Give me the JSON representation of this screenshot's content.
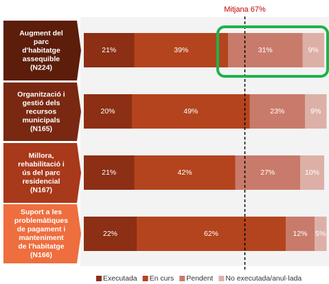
{
  "chart_data": {
    "type": "stacked-barh",
    "categories": [
      [
        "Augment del",
        "parc",
        "d'habitatge",
        "assequible",
        "(N224)"
      ],
      [
        "Organització i",
        "gestió dels",
        "recursos",
        "municipals",
        "(N165)"
      ],
      [
        "Millora,",
        "rehabilitació i",
        "ús del parc",
        "residencial",
        "(N167)"
      ],
      [
        "Suport a les",
        "problemàtiques",
        "de pagament i",
        "manteniment",
        "de l'habitatge",
        "(N166)"
      ]
    ],
    "category_colors": [
      "#5c1d0b",
      "#7a2811",
      "#a8391a",
      "#ee6e3e"
    ],
    "series": [
      {
        "name": "Executada",
        "color": "#8c2f14",
        "values": [
          21,
          20,
          21,
          22
        ],
        "value_labels": [
          "21%",
          "20%",
          "21%",
          "22%"
        ]
      },
      {
        "name": "En curs",
        "color": "#b4441e",
        "values": [
          39,
          49,
          42,
          62
        ],
        "value_labels": [
          "39%",
          "49%",
          "42%",
          "62%"
        ]
      },
      {
        "name": "Pendent",
        "color": "#c97b6b",
        "values": [
          31,
          23,
          27,
          12
        ],
        "value_labels": [
          "31%",
          "23%",
          "27%",
          "12%"
        ]
      },
      {
        "name": "No executada/anul·lada",
        "color": "#ddb0a7",
        "values": [
          9,
          9,
          10,
          5
        ],
        "value_labels": [
          "9%",
          "9%",
          "10%",
          "5%"
        ]
      }
    ],
    "xlim": [
      0,
      100
    ],
    "mean": {
      "value": 67,
      "label": "Mitjana 67%",
      "color": "#c00000"
    },
    "legend": "bottom"
  }
}
